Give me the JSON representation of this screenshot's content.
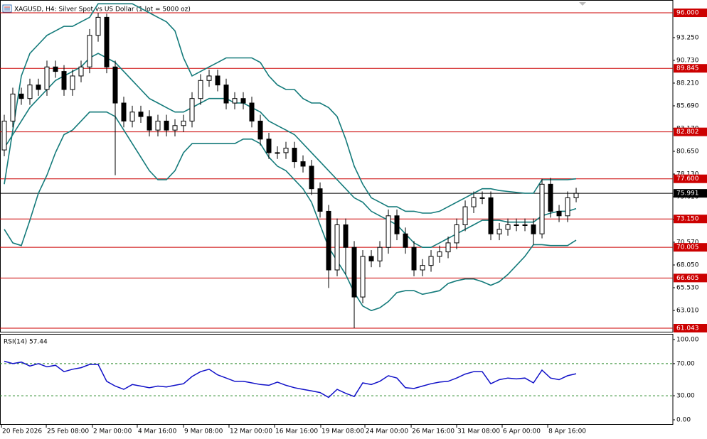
{
  "chart_data": [
    {
      "type": "candlestick",
      "title": "XAGUSD, H4:  Silver Spot vs US Dollar (1 lot = 5000 oz)",
      "candle_color": "#000000",
      "xlim": [
        -0.5,
        78.33
      ],
      "ylim": [
        60.65,
        96.79
      ],
      "xticks": [
        {
          "value": -0.33,
          "label": "20 Feb 2026"
        },
        {
          "value": 4.92,
          "label": "25 Feb 08:00"
        },
        {
          "value": 10.33,
          "label": "2 Mar 00:00"
        },
        {
          "value": 15.58,
          "label": "4 Mar 16:00"
        },
        {
          "value": 21,
          "label": "9 Mar 08:00"
        },
        {
          "value": 26.33,
          "label": "12 Mar 00:00"
        },
        {
          "value": 31.67,
          "label": "16 Mar 16:00"
        },
        {
          "value": 37.08,
          "label": "19 Mar 08:00"
        },
        {
          "value": 42.25,
          "label": "24 Mar 00:00"
        },
        {
          "value": 47.67,
          "label": "26 Mar 16:00"
        },
        {
          "value": 53,
          "label": "31 Mar 08:00"
        },
        {
          "value": 58.33,
          "label": "6 Apr 00:00"
        },
        {
          "value": 63.67,
          "label": "8 Apr 16:00"
        }
      ],
      "yticks": [
        {
          "value": 93.25,
          "label": "93.250"
        },
        {
          "value": 90.73,
          "label": "90.730"
        },
        {
          "value": 88.21,
          "label": "88.210"
        },
        {
          "value": 85.69,
          "label": "85.690"
        },
        {
          "value": 83.17,
          "label": "83.170"
        },
        {
          "value": 80.65,
          "label": "80.650"
        },
        {
          "value": 78.13,
          "label": "78.130"
        },
        {
          "value": 75.61,
          "label": "75.610"
        },
        {
          "value": 73.09,
          "label": "73.090"
        },
        {
          "value": 70.57,
          "label": "70.570"
        },
        {
          "value": 68.05,
          "label": "68.050"
        },
        {
          "value": 65.53,
          "label": "65.530"
        },
        {
          "value": 63.01,
          "label": "63.010"
        }
      ],
      "open": [
        80.8,
        84,
        87,
        86.5,
        88,
        87.5,
        90,
        89.5,
        87.5,
        89,
        90,
        93.5,
        95.5,
        90,
        86,
        84,
        85,
        84.5,
        83,
        84,
        83,
        83.5,
        84,
        86.5,
        88.5,
        89,
        88,
        86,
        86.5,
        86,
        84,
        82,
        80.5,
        80.5,
        81,
        79.5,
        79,
        76.5,
        74,
        67.5,
        72.5,
        70,
        64.5,
        69,
        68.5,
        70,
        73.5,
        71.5,
        70,
        67.5,
        68,
        69,
        69.5,
        70.5,
        72.5,
        74.5,
        75.5,
        75.5,
        71.5,
        72,
        72.5,
        72.5,
        72.5,
        71.5,
        77,
        74,
        73.5,
        75.5
      ],
      "high": [
        84.7,
        87.7,
        87.7,
        88.7,
        88.7,
        90.7,
        90.7,
        90.2,
        89.7,
        90.7,
        94.2,
        96.0,
        95.9,
        90.7,
        86.7,
        85.7,
        85.7,
        85.2,
        84.7,
        84.7,
        84.2,
        84.7,
        87.2,
        89.2,
        89.7,
        89.7,
        88.7,
        87.2,
        87.2,
        86.7,
        84.7,
        82.7,
        81.2,
        81.7,
        81.7,
        80.2,
        79.7,
        77.2,
        74.7,
        73.2,
        73.2,
        70.7,
        69.7,
        69.7,
        70.7,
        74.2,
        74.2,
        72.2,
        70.7,
        68.7,
        69.7,
        70.2,
        71.2,
        73.2,
        75.2,
        76.2,
        76.2,
        76.2,
        72.7,
        73.2,
        73.2,
        73.2,
        73.2,
        77.6,
        77.7,
        74.7,
        76.2,
        76.6
      ],
      "low": [
        80.1,
        83.3,
        85.8,
        85.8,
        86.8,
        86.8,
        88.8,
        86.8,
        86.8,
        88.3,
        89.3,
        92.8,
        89.3,
        78.0,
        83.3,
        83.3,
        83.8,
        82.3,
        82.3,
        82.3,
        82.3,
        82.8,
        83.3,
        85.8,
        87.8,
        87.3,
        85.3,
        85.3,
        85.3,
        83.3,
        81.3,
        79.8,
        79.8,
        79.8,
        78.8,
        78.3,
        75.8,
        73.3,
        65.5,
        66.8,
        67.0,
        61.043,
        63.8,
        67.8,
        67.8,
        69.3,
        70.8,
        69.3,
        66.8,
        66.8,
        67.3,
        68.3,
        68.8,
        69.8,
        71.8,
        73.8,
        74.8,
        70.8,
        70.8,
        71.3,
        71.8,
        71.8,
        70.3,
        71.0,
        73.3,
        72.8,
        72.8,
        75.0
      ],
      "close": [
        84,
        87,
        86.5,
        88,
        87.5,
        90,
        89.5,
        87.5,
        89,
        90,
        93.5,
        95.5,
        90,
        86,
        84,
        85,
        84.5,
        83,
        84,
        83,
        83.5,
        84,
        86.5,
        88.5,
        89,
        88,
        86,
        86.5,
        86,
        84,
        82,
        80.5,
        80.5,
        81,
        79.5,
        79,
        76.5,
        74,
        67.5,
        72.5,
        70,
        64.5,
        69,
        68.5,
        70,
        73.5,
        71.5,
        70,
        67.5,
        68,
        69,
        69.5,
        70.5,
        72.5,
        74.5,
        75.5,
        75.5,
        71.5,
        72,
        72.5,
        72.5,
        72.5,
        71.5,
        77,
        74,
        73.5,
        75.5,
        75.991
      ],
      "bands": [
        {
          "color": "#137a7a",
          "values": [
            77,
            83,
            89,
            91.5,
            92.5,
            93.5,
            94,
            94.5,
            94.5,
            95,
            95.5,
            97,
            97,
            97,
            97,
            97,
            96.5,
            96,
            95.5,
            95,
            94,
            91,
            89,
            89.5,
            90,
            90.5,
            91,
            91,
            91,
            91,
            90.5,
            89,
            88,
            87.5,
            87.5,
            86.5,
            86,
            86,
            85.5,
            84.5,
            82,
            79,
            77,
            75.5,
            75,
            74.5,
            74.5,
            74,
            74,
            73.8,
            73.8,
            74,
            74.5,
            75,
            75.5,
            76,
            76.5,
            76.5,
            76.3,
            76.2,
            76.1,
            76,
            76,
            77.5,
            77.5,
            77.5,
            77.5,
            77.6
          ]
        },
        {
          "color": "#137a7a",
          "values": [
            81,
            82.5,
            84,
            85.5,
            86.5,
            87.5,
            88.5,
            89,
            89.5,
            90,
            91,
            91.5,
            91,
            90.5,
            89.5,
            88.5,
            87.5,
            86.5,
            86,
            85.5,
            85,
            85,
            85.5,
            86,
            86.5,
            86.5,
            86.5,
            86,
            86,
            85.5,
            85,
            84,
            83.5,
            83,
            82.5,
            81.5,
            80.5,
            79.5,
            78.5,
            77.5,
            76.5,
            75.5,
            75,
            74,
            73.5,
            73,
            72.5,
            71.5,
            70.5,
            70,
            70,
            70.5,
            71,
            71.5,
            72,
            72.5,
            73,
            73,
            73,
            72.8,
            72.8,
            72.8,
            72.8,
            73.5,
            73.8,
            74,
            74,
            74.3
          ]
        },
        {
          "color": "#137a7a",
          "values": [
            72,
            70.5,
            70.2,
            73,
            76,
            78,
            80.5,
            82.5,
            83,
            84,
            85,
            85,
            85,
            84.5,
            83,
            81.5,
            80,
            78.5,
            77.5,
            77.5,
            78.5,
            80.5,
            81.5,
            81.5,
            81.5,
            81.5,
            81.5,
            81.5,
            82,
            82,
            81.5,
            80,
            79,
            78.5,
            77.5,
            76.5,
            75,
            72.5,
            70,
            68.5,
            67,
            65,
            63.5,
            63,
            63.3,
            64,
            65,
            65.2,
            65.2,
            64.8,
            65,
            65.2,
            66,
            66.3,
            66.5,
            66.5,
            66.2,
            65.8,
            66.2,
            67,
            68,
            69,
            70.3,
            70.3,
            70.2,
            70.2,
            70.2,
            70.8
          ]
        }
      ],
      "level_color": "#cc0000",
      "levels": [
        {
          "value": 96.0,
          "label": "96.000"
        },
        {
          "value": 89.845,
          "label": "89.845"
        },
        {
          "value": 82.802,
          "label": "82.802"
        },
        {
          "value": 77.6,
          "label": "77.600"
        },
        {
          "value": 73.15,
          "label": "73.150"
        },
        {
          "value": 70.005,
          "label": "70.005"
        },
        {
          "value": 66.605,
          "label": "66.605"
        },
        {
          "value": 61.043,
          "label": "61.043"
        }
      ],
      "current": {
        "value": 75.991,
        "label": "75.991"
      }
    },
    {
      "type": "line",
      "title": "RSI(14) 57.44",
      "color": "#1010c8",
      "ylim": [
        -6.2,
        107.1
      ],
      "yticks": [
        {
          "value": 100,
          "label": "100.00"
        },
        {
          "value": 70,
          "label": "70.00"
        },
        {
          "value": 30,
          "label": "30.00"
        },
        {
          "value": 0,
          "label": "0.00"
        }
      ],
      "levels": [
        70,
        30
      ],
      "values": [
        73,
        70,
        72,
        67,
        70,
        66,
        68,
        60,
        63,
        65,
        69,
        69,
        48,
        42,
        38,
        44,
        42,
        40,
        42,
        41,
        43,
        45,
        54,
        60,
        63,
        56,
        52,
        48,
        48,
        46,
        44,
        43,
        47,
        43,
        40,
        38,
        36,
        34,
        28,
        38,
        33,
        29,
        46,
        44,
        48,
        55,
        52,
        40,
        39,
        42,
        45,
        47,
        48,
        52,
        57,
        60,
        60,
        45,
        50,
        52,
        51,
        52,
        46,
        62,
        52,
        50,
        55,
        57.44
      ]
    }
  ]
}
